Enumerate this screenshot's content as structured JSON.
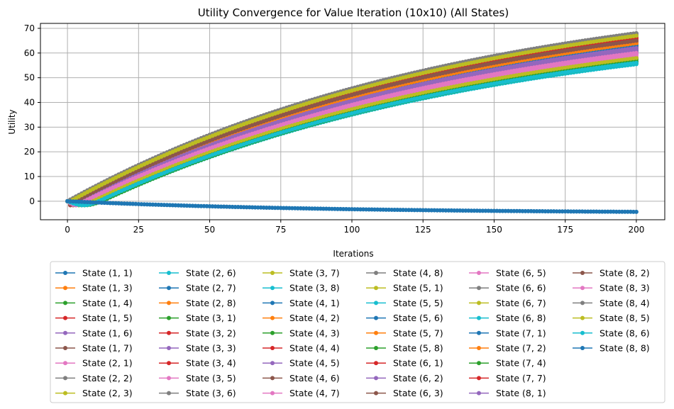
{
  "chart_data": {
    "type": "line",
    "title": "Utility Convergence for Value Iteration (10x10) (All States)",
    "xlabel": "Iterations",
    "ylabel": "Utility",
    "xlim": [
      -9.5,
      210
    ],
    "ylim": [
      -7.5,
      72
    ],
    "xticks": [
      0,
      25,
      50,
      75,
      100,
      125,
      150,
      175,
      200
    ],
    "yticks": [
      0,
      10,
      20,
      30,
      40,
      50,
      60,
      70
    ],
    "grid": true,
    "legend_placement": "below",
    "legend_columns": 6,
    "iterations": 200,
    "series": [
      {
        "name": "State (1, 1)",
        "color": "#1f77b4",
        "final": 60.5,
        "delay": 5
      },
      {
        "name": "State (1, 3)",
        "color": "#ff7f0e",
        "final": 61.0,
        "delay": 5
      },
      {
        "name": "State (1, 4)",
        "color": "#2ca02c",
        "final": 56.5,
        "delay": 11
      },
      {
        "name": "State (1, 5)",
        "color": "#d62728",
        "final": 65.0,
        "delay": 3
      },
      {
        "name": "State (1, 6)",
        "color": "#9467bd",
        "final": 62.0,
        "delay": 5
      },
      {
        "name": "State (1, 7)",
        "color": "#8c564b",
        "final": 63.0,
        "delay": 4
      },
      {
        "name": "State (2, 1)",
        "color": "#e377c2",
        "final": 59.5,
        "delay": 6
      },
      {
        "name": "State (2, 2)",
        "color": "#7f7f7f",
        "final": 61.5,
        "delay": 5
      },
      {
        "name": "State (2, 3)",
        "color": "#bcbd22",
        "final": 57.5,
        "delay": 9
      },
      {
        "name": "State (2, 6)",
        "color": "#17becf",
        "final": 56.0,
        "delay": 11
      },
      {
        "name": "State (2, 7)",
        "color": "#1f77b4",
        "final": 62.5,
        "delay": 5
      },
      {
        "name": "State (2, 8)",
        "color": "#ff7f0e",
        "final": 64.0,
        "delay": 4
      },
      {
        "name": "State (3, 1)",
        "color": "#2ca02c",
        "final": 58.0,
        "delay": 8
      },
      {
        "name": "State (3, 2)",
        "color": "#d62728",
        "final": 63.5,
        "delay": 4
      },
      {
        "name": "State (3, 3)",
        "color": "#9467bd",
        "final": 60.0,
        "delay": 6
      },
      {
        "name": "State (3, 4)",
        "color": "#d62728",
        "final": 66.0,
        "delay": 2
      },
      {
        "name": "State (3, 5)",
        "color": "#e377c2",
        "final": 59.0,
        "delay": 7
      },
      {
        "name": "State (3, 6)",
        "color": "#7f7f7f",
        "final": 66.5,
        "delay": 2
      },
      {
        "name": "State (3, 7)",
        "color": "#bcbd22",
        "final": 67.0,
        "delay": 1
      },
      {
        "name": "State (3, 8)",
        "color": "#17becf",
        "final": 57.0,
        "delay": 10
      },
      {
        "name": "State (4, 1)",
        "color": "#1f77b4",
        "final": 61.0,
        "delay": 5
      },
      {
        "name": "State (4, 2)",
        "color": "#ff7f0e",
        "final": 62.5,
        "delay": 5
      },
      {
        "name": "State (4, 3)",
        "color": "#2ca02c",
        "final": 56.5,
        "delay": 11
      },
      {
        "name": "State (4, 4)",
        "color": "#d62728",
        "final": 64.5,
        "delay": 3
      },
      {
        "name": "State (4, 5)",
        "color": "#9467bd",
        "final": 60.5,
        "delay": 6
      },
      {
        "name": "State (4, 6)",
        "color": "#8c564b",
        "final": 63.0,
        "delay": 4
      },
      {
        "name": "State (4, 7)",
        "color": "#e377c2",
        "final": 58.5,
        "delay": 7
      },
      {
        "name": "State (4, 8)",
        "color": "#7f7f7f",
        "final": 68.0,
        "delay": 0
      },
      {
        "name": "State (5, 1)",
        "color": "#bcbd22",
        "final": 67.5,
        "delay": 1
      },
      {
        "name": "State (5, 5)",
        "color": "#17becf",
        "final": 56.0,
        "delay": 12
      },
      {
        "name": "State (5, 6)",
        "color": "#1f77b4",
        "final": 62.0,
        "delay": 5
      },
      {
        "name": "State (5, 7)",
        "color": "#ff7f0e",
        "final": 63.5,
        "delay": 4
      },
      {
        "name": "State (5, 8)",
        "color": "#2ca02c",
        "final": 57.5,
        "delay": 9
      },
      {
        "name": "State (6, 1)",
        "color": "#d62728",
        "final": 65.5,
        "delay": 3
      },
      {
        "name": "State (6, 2)",
        "color": "#9467bd",
        "final": 61.5,
        "delay": 5
      },
      {
        "name": "State (6, 3)",
        "color": "#8c564b",
        "final": 64.5,
        "delay": 3
      },
      {
        "name": "State (6, 5)",
        "color": "#e377c2",
        "final": 60.0,
        "delay": 6
      },
      {
        "name": "State (6, 6)",
        "color": "#7f7f7f",
        "final": 67.5,
        "delay": 1
      },
      {
        "name": "State (6, 7)",
        "color": "#bcbd22",
        "final": 58.0,
        "delay": 8
      },
      {
        "name": "State (6, 8)",
        "color": "#17becf",
        "final": 55.5,
        "delay": 12
      },
      {
        "name": "State (7, 1)",
        "color": "#1f77b4",
        "final": 63.0,
        "delay": 4
      },
      {
        "name": "State (7, 2)",
        "color": "#ff7f0e",
        "final": 64.0,
        "delay": 4
      },
      {
        "name": "State (7, 4)",
        "color": "#2ca02c",
        "final": 56.0,
        "delay": 12
      },
      {
        "name": "State (7, 7)",
        "color": "#d62728",
        "final": 66.0,
        "delay": 2
      },
      {
        "name": "State (8, 1)",
        "color": "#9467bd",
        "final": 62.0,
        "delay": 5
      },
      {
        "name": "State (8, 2)",
        "color": "#8c564b",
        "final": 65.0,
        "delay": 3
      },
      {
        "name": "State (8, 3)",
        "color": "#e377c2",
        "final": 59.5,
        "delay": 6
      },
      {
        "name": "State (8, 4)",
        "color": "#7f7f7f",
        "final": 68.0,
        "delay": 0
      },
      {
        "name": "State (8, 5)",
        "color": "#bcbd22",
        "final": 67.0,
        "delay": 1
      },
      {
        "name": "State (8, 6)",
        "color": "#17becf",
        "final": 56.0,
        "delay": 11
      },
      {
        "name": "State (8, 8)",
        "color": "#1f77b4",
        "final": -4.3,
        "delay": 0
      }
    ]
  }
}
